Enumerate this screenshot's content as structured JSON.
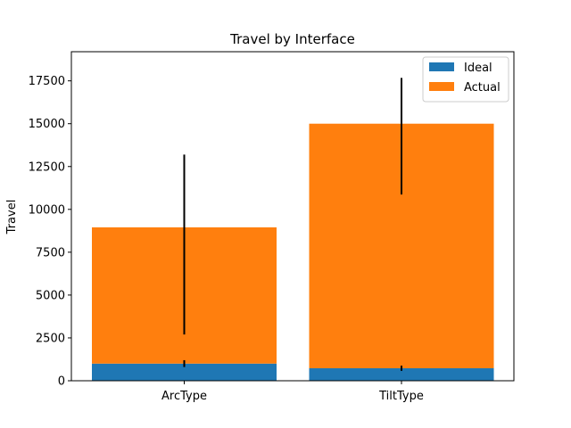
{
  "chart_data": {
    "type": "bar",
    "stacked": true,
    "title": "Travel by Interface",
    "xlabel": "",
    "ylabel": "Travel",
    "categories": [
      "ArcType",
      "TiltType"
    ],
    "series": [
      {
        "name": "Ideal",
        "color": "#1f77b4",
        "values": [
          1000,
          730
        ],
        "error": [
          200,
          150
        ]
      },
      {
        "name": "Actual",
        "color": "#ff7f0e",
        "values": [
          7950,
          14270
        ],
        "error": [
          5250,
          3400
        ]
      }
    ],
    "ylim": [
      0,
      19200
    ],
    "yticks": [
      0,
      2500,
      5000,
      7500,
      10000,
      12500,
      15000,
      17500
    ],
    "ytick_labels": [
      "0",
      "2500",
      "5000",
      "7500",
      "10000",
      "12500",
      "15000",
      "17500"
    ],
    "grid": false,
    "legend_position": "top-right"
  }
}
